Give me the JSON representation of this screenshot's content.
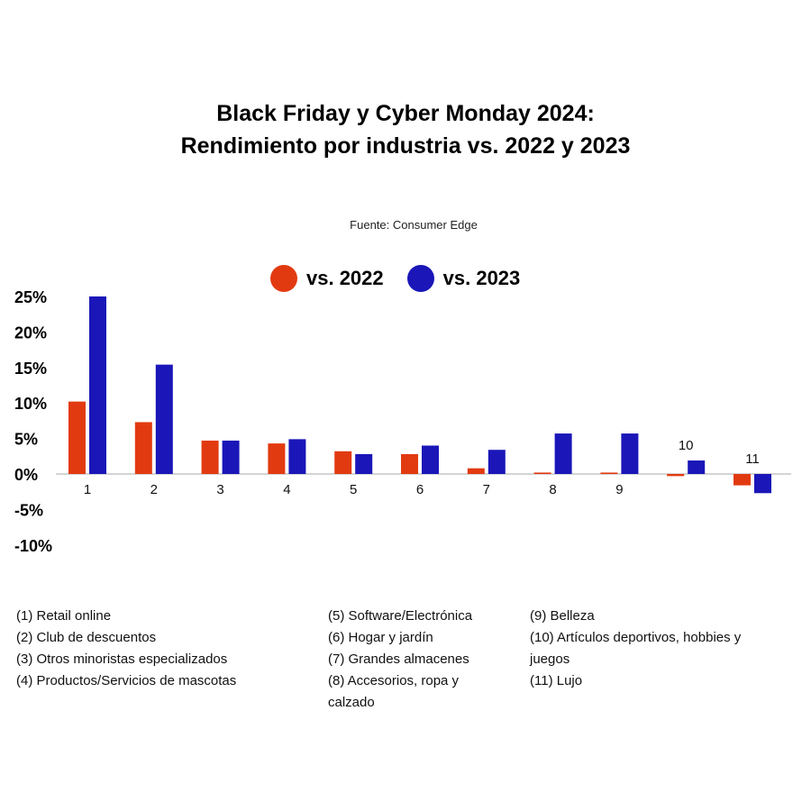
{
  "title_line1": "Black Friday y Cyber Monday 2024:",
  "title_line2": "Rendimiento por industria vs. 2022 y 2023",
  "source": "Fuente: Consumer Edge",
  "legend": [
    {
      "label": "vs. 2022",
      "color": "#e23a10"
    },
    {
      "label": "vs. 2023",
      "color": "#1a16b8"
    }
  ],
  "footnotes": {
    "col1": [
      "(1)   Retail online",
      "(2)  Club de descuentos",
      "(3)  Otros minoristas especializados",
      "(4)  Productos/Servicios de mascotas"
    ],
    "col2": [
      "(5)   Software/Electrónica",
      "(6)   Hogar y jardín",
      "(7)   Grandes almacenes",
      "(8)   Accesorios, ropa y calzado"
    ],
    "col3": [
      "(9) Belleza",
      "(10) Artículos deportivos, hobbies y juegos",
      "(11) Lujo"
    ]
  },
  "chart_data": {
    "type": "bar",
    "categories": [
      "1",
      "2",
      "3",
      "4",
      "5",
      "6",
      "7",
      "8",
      "9",
      "10",
      "11"
    ],
    "series": [
      {
        "name": "vs. 2022",
        "color": "#e23a10",
        "values": [
          10.2,
          7.3,
          4.7,
          4.3,
          3.2,
          2.8,
          0.8,
          0.2,
          0.2,
          -0.3,
          -1.6
        ]
      },
      {
        "name": "vs. 2023",
        "color": "#1a16b8",
        "values": [
          25.0,
          15.4,
          4.7,
          4.9,
          2.8,
          4.0,
          3.4,
          5.7,
          5.7,
          1.9,
          -2.7
        ]
      }
    ],
    "yticks": [
      "25%",
      "20%",
      "15%",
      "10%",
      "5%",
      "0%",
      "-5%",
      "-10%"
    ],
    "ylim": [
      -10,
      25
    ],
    "xlabel": "",
    "ylabel": ""
  }
}
